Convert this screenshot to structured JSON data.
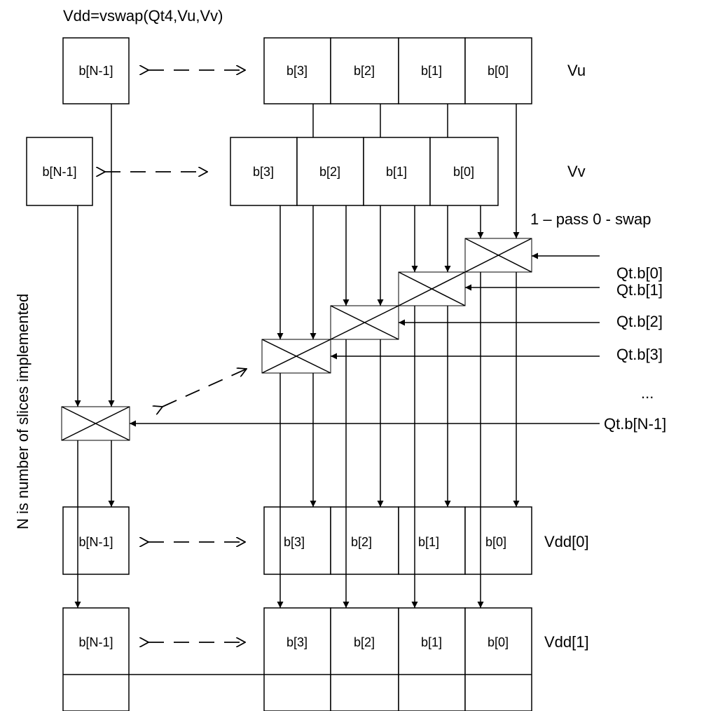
{
  "title": "Vdd=vswap(Qt4,Vu,Vv)",
  "side_note": "N is number of slices implemented",
  "pass_note": "1 – pass 0 - swap",
  "ellipsis": "...",
  "registers": {
    "vu": {
      "name": "Vu",
      "far": "b[N-1]",
      "cells": [
        "b[3]",
        "b[2]",
        "b[1]",
        "b[0]"
      ]
    },
    "vv": {
      "name": "Vv",
      "far": "b[N-1]",
      "cells": [
        "b[3]",
        "b[2]",
        "b[1]",
        "b[0]"
      ]
    },
    "vdd0": {
      "name": "Vdd[0]",
      "far": "b[N-1]",
      "cells": [
        "b[3]",
        "b[2]",
        "b[1]",
        "b[0]"
      ]
    },
    "vdd1": {
      "name": "Vdd[1]",
      "far": "b[N-1]",
      "cells": [
        "b[3]",
        "b[2]",
        "b[1]",
        "b[0]"
      ]
    }
  },
  "predicates": [
    "Qt.b[0]",
    "Qt.b[1]",
    "Qt.b[2]",
    "Qt.b[3]",
    "Qt.b[N-1]"
  ]
}
